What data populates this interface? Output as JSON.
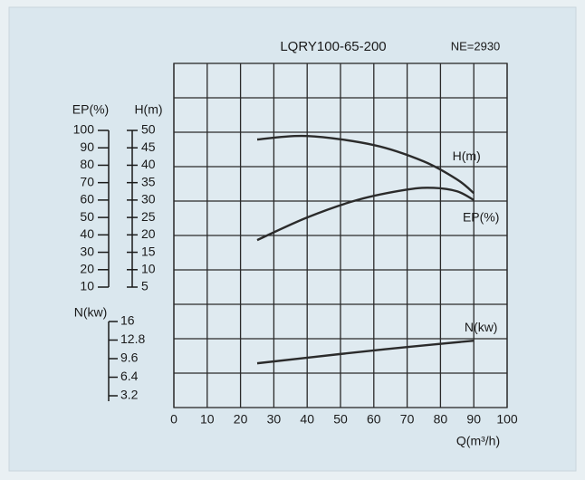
{
  "chart_data": {
    "type": "line",
    "title": "LQRY100-65-200",
    "subtitle": "NE=2930",
    "xlabel": "Q(m³/h)",
    "ylabel": "EP(%)",
    "y2label": "H(m)",
    "y3label": "N(kw)",
    "xlim": [
      0,
      100
    ],
    "xticks": [
      0,
      10,
      20,
      30,
      40,
      50,
      60,
      70,
      80,
      90,
      100
    ],
    "ylim": [
      10,
      100
    ],
    "yticks": [
      10,
      20,
      30,
      40,
      50,
      60,
      70,
      80,
      90,
      100
    ],
    "y2lim": [
      5,
      50
    ],
    "y2ticks": [
      5,
      10,
      15,
      20,
      25,
      30,
      35,
      40,
      45,
      50
    ],
    "y3lim": [
      3.2,
      16
    ],
    "y3ticks": [
      3.2,
      6.4,
      9.6,
      12.8,
      16
    ],
    "grid": true,
    "series": [
      {
        "name": "H(m)",
        "axis": "y2",
        "color": "#2b2b2b",
        "x": [
          25,
          40,
          60,
          75,
          85,
          90
        ],
        "values": [
          47.4,
          48.4,
          45.8,
          41.1,
          35.9,
          32
        ]
      },
      {
        "name": "EP(%)",
        "axis": "y",
        "color": "#2b2b2b",
        "x": [
          25,
          40,
          55,
          70,
          78,
          85,
          90
        ],
        "values": [
          37,
          50,
          60,
          66,
          67,
          65,
          60
        ]
      },
      {
        "name": "N(kw)",
        "axis": "y3",
        "color": "#2b2b2b",
        "x": [
          25,
          50,
          70,
          90
        ],
        "values": [
          8.8,
          10.4,
          11.6,
          12.7
        ]
      }
    ]
  }
}
